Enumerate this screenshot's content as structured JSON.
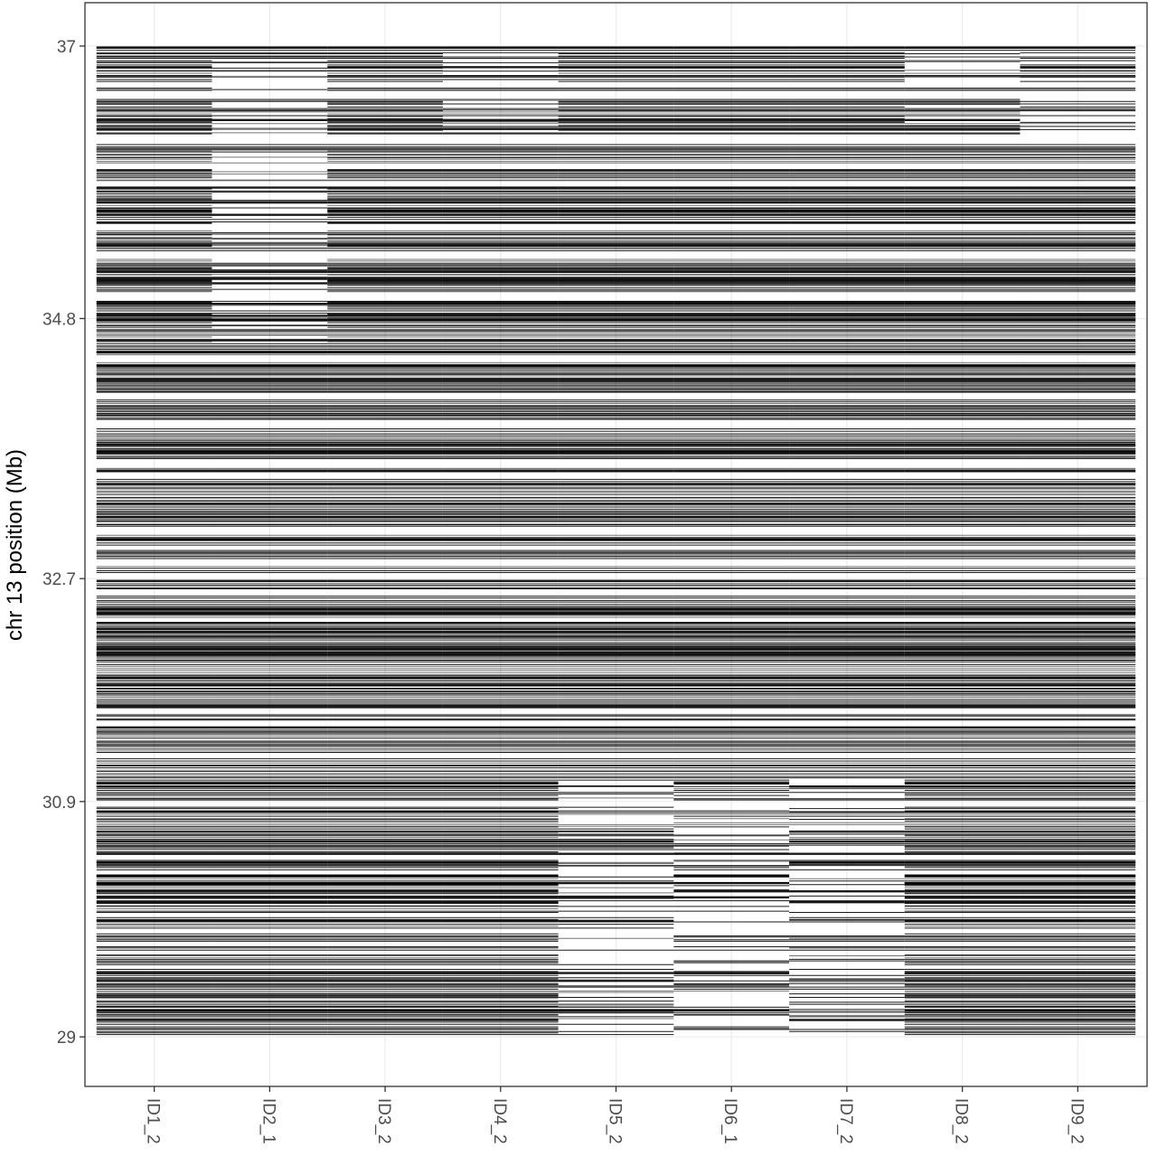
{
  "chart_data": {
    "type": "heatmap",
    "title": "",
    "xlabel": "",
    "ylabel": "chr 13 position (Mb)",
    "categories": [
      "ID1_2",
      "ID2_1",
      "ID3_2",
      "ID4_2",
      "ID5_2",
      "ID6_1",
      "ID7_2",
      "ID8_2",
      "ID9_2"
    ],
    "y_ticks": [
      29,
      30.9,
      32.7,
      34.8,
      37
    ],
    "ylim": [
      28.6,
      37.35
    ],
    "data_range": [
      29.0,
      37.0
    ],
    "grid": true,
    "theme": "bw",
    "mark_color": "#000000",
    "panel_border_color": "#333333",
    "grid_color": "#ebebeb",
    "segments": [
      {
        "sample": "ID2_1",
        "start": 34.6,
        "end": 36.9
      },
      {
        "sample": "ID4_2",
        "start": 36.3,
        "end": 36.95
      },
      {
        "sample": "ID5_2",
        "start": 29.0,
        "end": 31.1
      },
      {
        "sample": "ID6_1",
        "start": 29.0,
        "end": 31.1
      },
      {
        "sample": "ID7_2",
        "start": 29.0,
        "end": 31.1
      },
      {
        "sample": "ID8_2",
        "start": 36.35,
        "end": 37.0
      },
      {
        "sample": "ID9_2",
        "start": 36.2,
        "end": 36.95
      }
    ]
  }
}
